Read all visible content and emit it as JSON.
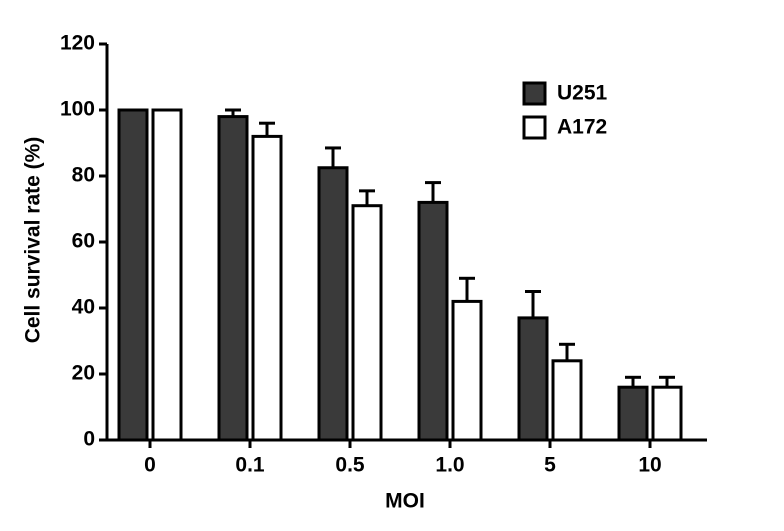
{
  "chart_data": {
    "type": "bar",
    "xlabel": "MOI",
    "ylabel": "Cell survival rate (%)",
    "categories": [
      "0",
      "0.1",
      "0.5",
      "1.0",
      "5",
      "10"
    ],
    "series": [
      {
        "name": "U251",
        "color": "#3a3a3a",
        "values": [
          100,
          98,
          82.5,
          72,
          37,
          16
        ],
        "errors": [
          0,
          2,
          6,
          6,
          8,
          3
        ]
      },
      {
        "name": "A172",
        "color": "#ffffff",
        "values": [
          100,
          92,
          71,
          42,
          24,
          16
        ],
        "errors": [
          0,
          4,
          4.5,
          7,
          5,
          3
        ]
      }
    ],
    "ylim": [
      0,
      120
    ],
    "yticks": [
      0,
      20,
      40,
      60,
      80,
      100,
      120
    ],
    "legend": "upper right"
  }
}
